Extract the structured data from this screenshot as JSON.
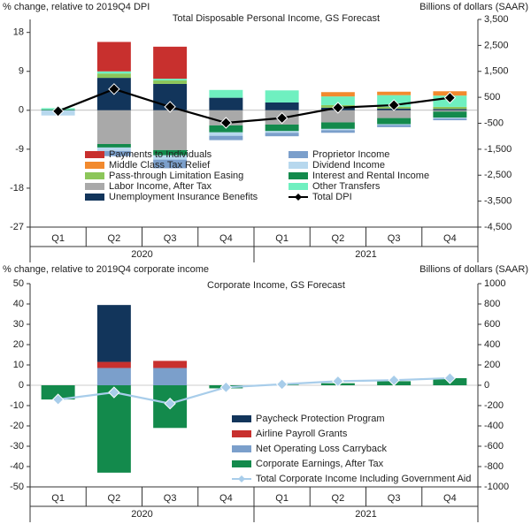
{
  "chart_data": [
    {
      "type": "combo",
      "title": "Total Disposable Personal Income, GS Forecast",
      "y_label": "% change, relative to 2019Q4 DPI",
      "y2_label": "Billions of dollars (SAAR)",
      "categories": [
        "Q1",
        "Q2",
        "Q3",
        "Q4",
        "Q1",
        "Q2",
        "Q3",
        "Q4"
      ],
      "year_labels": [
        "2020",
        "2021"
      ],
      "ylim": [
        -27,
        21
      ],
      "yticks": [
        -27,
        -18,
        -9,
        0,
        9,
        18
      ],
      "y2lim": [
        -4500,
        3500
      ],
      "y2ticks": [
        {
          "value": -4500,
          "label": "-4,500"
        },
        {
          "value": -3500,
          "label": "-3,500"
        },
        {
          "value": -2500,
          "label": "-2,500"
        },
        {
          "value": -1500,
          "label": "-1,500"
        },
        -500,
        500,
        {
          "value": 1500,
          "label": "1,500"
        },
        {
          "value": 2500,
          "label": "2,500"
        },
        {
          "value": 3500,
          "label": "3,500"
        }
      ],
      "series": [
        {
          "name": "Payments to Individuals",
          "kind": "bar",
          "color": "#c8302e",
          "values": [
            0,
            6.8,
            7.4,
            0,
            0,
            0,
            0,
            0
          ]
        },
        {
          "name": "Middle Class Tax Relief",
          "kind": "bar",
          "color": "#f28a2e",
          "values": [
            0,
            0,
            0,
            0,
            0,
            1.0,
            0.8,
            1.0
          ]
        },
        {
          "name": "Pass-through Limitation Easing",
          "kind": "bar",
          "color": "#8cc65a",
          "values": [
            0,
            1.0,
            0.8,
            0,
            0,
            0.6,
            0.4,
            0.5
          ]
        },
        {
          "name": "Labor Income, After Tax",
          "kind": "bar",
          "color": "#a9a9a9",
          "values": [
            0,
            -7.8,
            -9.2,
            -3.5,
            -3.3,
            -2.8,
            -1.8,
            -0.3
          ]
        },
        {
          "name": "Unemployment Insurance Benefits",
          "kind": "bar",
          "color": "#12355b",
          "values": [
            0,
            7.5,
            6.1,
            2.9,
            1.8,
            0.6,
            0.4,
            0.3
          ]
        },
        {
          "name": "Proprietor Income",
          "kind": "bar",
          "color": "#7b9fcb",
          "values": [
            0,
            -1.2,
            -2.0,
            -1.0,
            -0.8,
            -0.6,
            -0.5,
            -0.4
          ]
        },
        {
          "name": "Dividend Income",
          "kind": "bar",
          "color": "#b7d8ee",
          "values": [
            -1.2,
            -0.8,
            -1.0,
            -0.8,
            -0.4,
            -0.3,
            -0.2,
            -0.2
          ]
        },
        {
          "name": "Interest and Rental Income",
          "kind": "bar",
          "color": "#138a4c",
          "values": [
            0.2,
            -0.8,
            -1.2,
            -1.6,
            -1.5,
            -1.5,
            -1.4,
            -1.4
          ]
        },
        {
          "name": "Other Transfers",
          "kind": "bar",
          "color": "#6ff0c0",
          "values": [
            0.3,
            0.5,
            0.4,
            1.8,
            2.8,
            2.0,
            2.7,
            2.6
          ]
        },
        {
          "name": "Total DPI",
          "kind": "line",
          "color": "#000000",
          "values": [
            -0.2,
            4.9,
            0.8,
            -2.9,
            -1.8,
            0.6,
            1.2,
            2.9
          ]
        }
      ]
    },
    {
      "type": "combo",
      "title": "Corporate Income, GS Forecast",
      "y_label": "% change, relative to 2019Q4 corporate income",
      "y2_label": "Billions of dollars (SAAR)",
      "categories": [
        "Q1",
        "Q2",
        "Q3",
        "Q4",
        "Q1",
        "Q2",
        "Q3",
        "Q4"
      ],
      "year_labels": [
        "2020",
        "2021"
      ],
      "ylim": [
        -50,
        50
      ],
      "yticks": [
        -50,
        -40,
        -30,
        -20,
        -10,
        0,
        10,
        20,
        30,
        40,
        50
      ],
      "y2lim": [
        -1000,
        1000
      ],
      "y2ticks": [
        -1000,
        -800,
        -600,
        -400,
        -200,
        0,
        200,
        400,
        600,
        800,
        1000
      ],
      "series": [
        {
          "name": "Paycheck Protection Program",
          "kind": "bar",
          "color": "#12355b",
          "values": [
            0,
            28,
            0,
            0,
            0,
            0,
            0,
            0
          ]
        },
        {
          "name": "Airline Payroll Grants",
          "kind": "bar",
          "color": "#c8302e",
          "values": [
            0,
            3,
            3.5,
            0,
            0,
            0,
            0,
            0
          ]
        },
        {
          "name": "Net Operating Loss Carryback",
          "kind": "bar",
          "color": "#7b9fcb",
          "values": [
            0,
            8.5,
            8.5,
            0,
            0,
            0,
            0,
            0
          ]
        },
        {
          "name": "Corporate Earnings, After Tax",
          "kind": "bar",
          "color": "#138a4c",
          "values": [
            -7,
            -43,
            -21,
            -1.5,
            0.3,
            1,
            2,
            3.5
          ]
        },
        {
          "name": "Total Corporate Income Including Government Aid",
          "kind": "line",
          "color": "#a8cdea",
          "values": [
            -7,
            -3.5,
            -9,
            -1,
            0.5,
            2,
            2.5,
            3.5
          ]
        }
      ]
    }
  ]
}
